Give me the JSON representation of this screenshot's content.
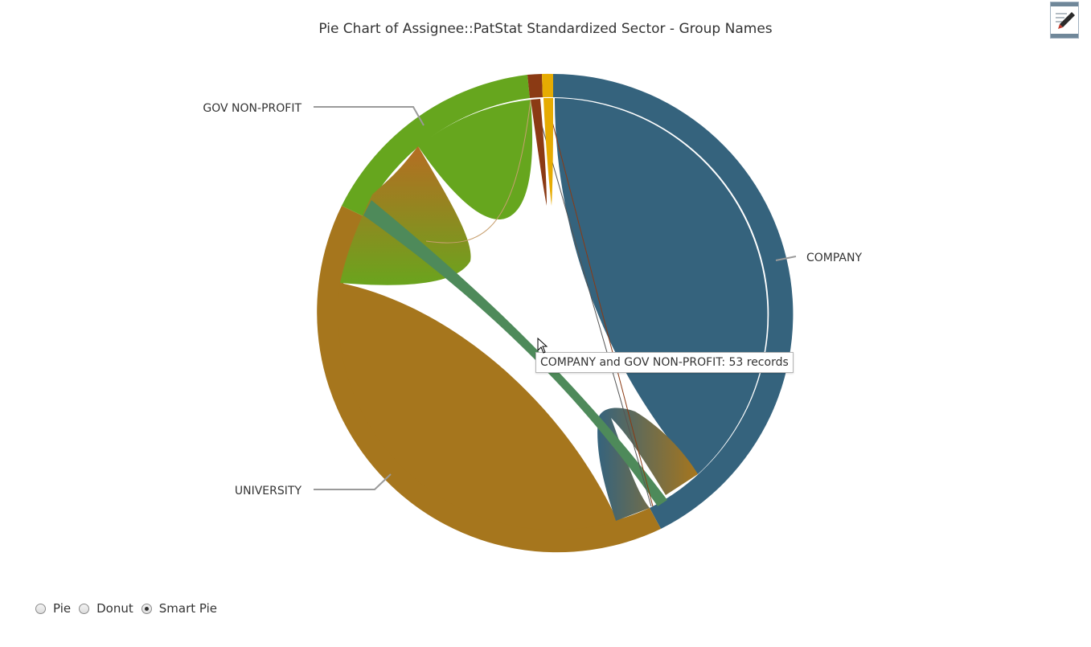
{
  "chart_data": {
    "type": "pie",
    "title": "Pie Chart of Assignee::PatStat Standardized Sector - Group Names",
    "labels": [
      "COMPANY",
      "UNIVERSITY",
      "GOV NON-PROFIT"
    ],
    "colors": {
      "COMPANY": "#35637d",
      "UNIVERSITY": "#a6761d",
      "GOV NON-PROFIT": "#66a61e",
      "small_1": "#8b3a14",
      "small_2": "#e6ab02"
    }
  },
  "tooltip": {
    "text": "COMPANY and GOV NON-PROFIT: 53 records"
  },
  "toolbar": {
    "edit_icon": "edit-pencil-icon"
  },
  "controls": {
    "chart_type_options": [
      "Pie",
      "Donut",
      "Smart Pie"
    ],
    "selected": "Smart Pie"
  }
}
